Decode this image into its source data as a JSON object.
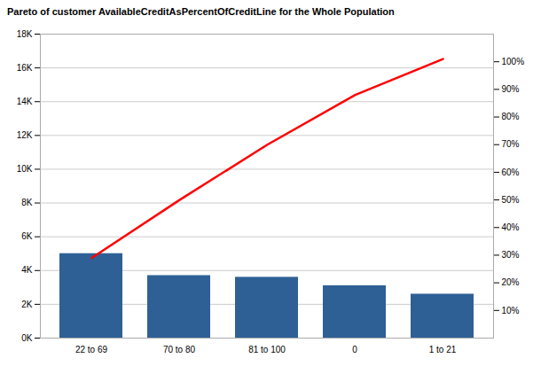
{
  "chart_data": {
    "type": "bar",
    "title": "Pareto of customer AvailableCreditAsPercentOfCreditLine for the Whole Population",
    "categories": [
      "22 to 69",
      "70 to 80",
      "81 to 100",
      "0",
      "1 to 21"
    ],
    "series": [
      {
        "type": "bar",
        "color": "#2E6096",
        "values": [
          5000,
          3700,
          3600,
          3100,
          2600
        ]
      },
      {
        "type": "line",
        "color": "#FF0000",
        "axis": "y2",
        "values": [
          29,
          50,
          70,
          88,
          101
        ]
      }
    ],
    "ylim": [
      0,
      18000
    ],
    "yticks": [
      {
        "value": 0,
        "label": "0K"
      },
      {
        "value": 2000,
        "label": "2K"
      },
      {
        "value": 4000,
        "label": "4K"
      },
      {
        "value": 6000,
        "label": "6K"
      },
      {
        "value": 8000,
        "label": "8K"
      },
      {
        "value": 10000,
        "label": "10K"
      },
      {
        "value": 12000,
        "label": "12K"
      },
      {
        "value": 14000,
        "label": "14K"
      },
      {
        "value": 16000,
        "label": "16K"
      },
      {
        "value": 18000,
        "label": "18K"
      }
    ],
    "y2lim": [
      0,
      110
    ],
    "y2ticks": [
      {
        "value": 10,
        "label": "10%"
      },
      {
        "value": 20,
        "label": "20%"
      },
      {
        "value": 30,
        "label": "30%"
      },
      {
        "value": 40,
        "label": "40%"
      },
      {
        "value": 50,
        "label": "50%"
      },
      {
        "value": 60,
        "label": "60%"
      },
      {
        "value": 70,
        "label": "70%"
      },
      {
        "value": 80,
        "label": "80%"
      },
      {
        "value": 90,
        "label": "90%"
      },
      {
        "value": 100,
        "label": "100%"
      }
    ],
    "grid": true
  }
}
